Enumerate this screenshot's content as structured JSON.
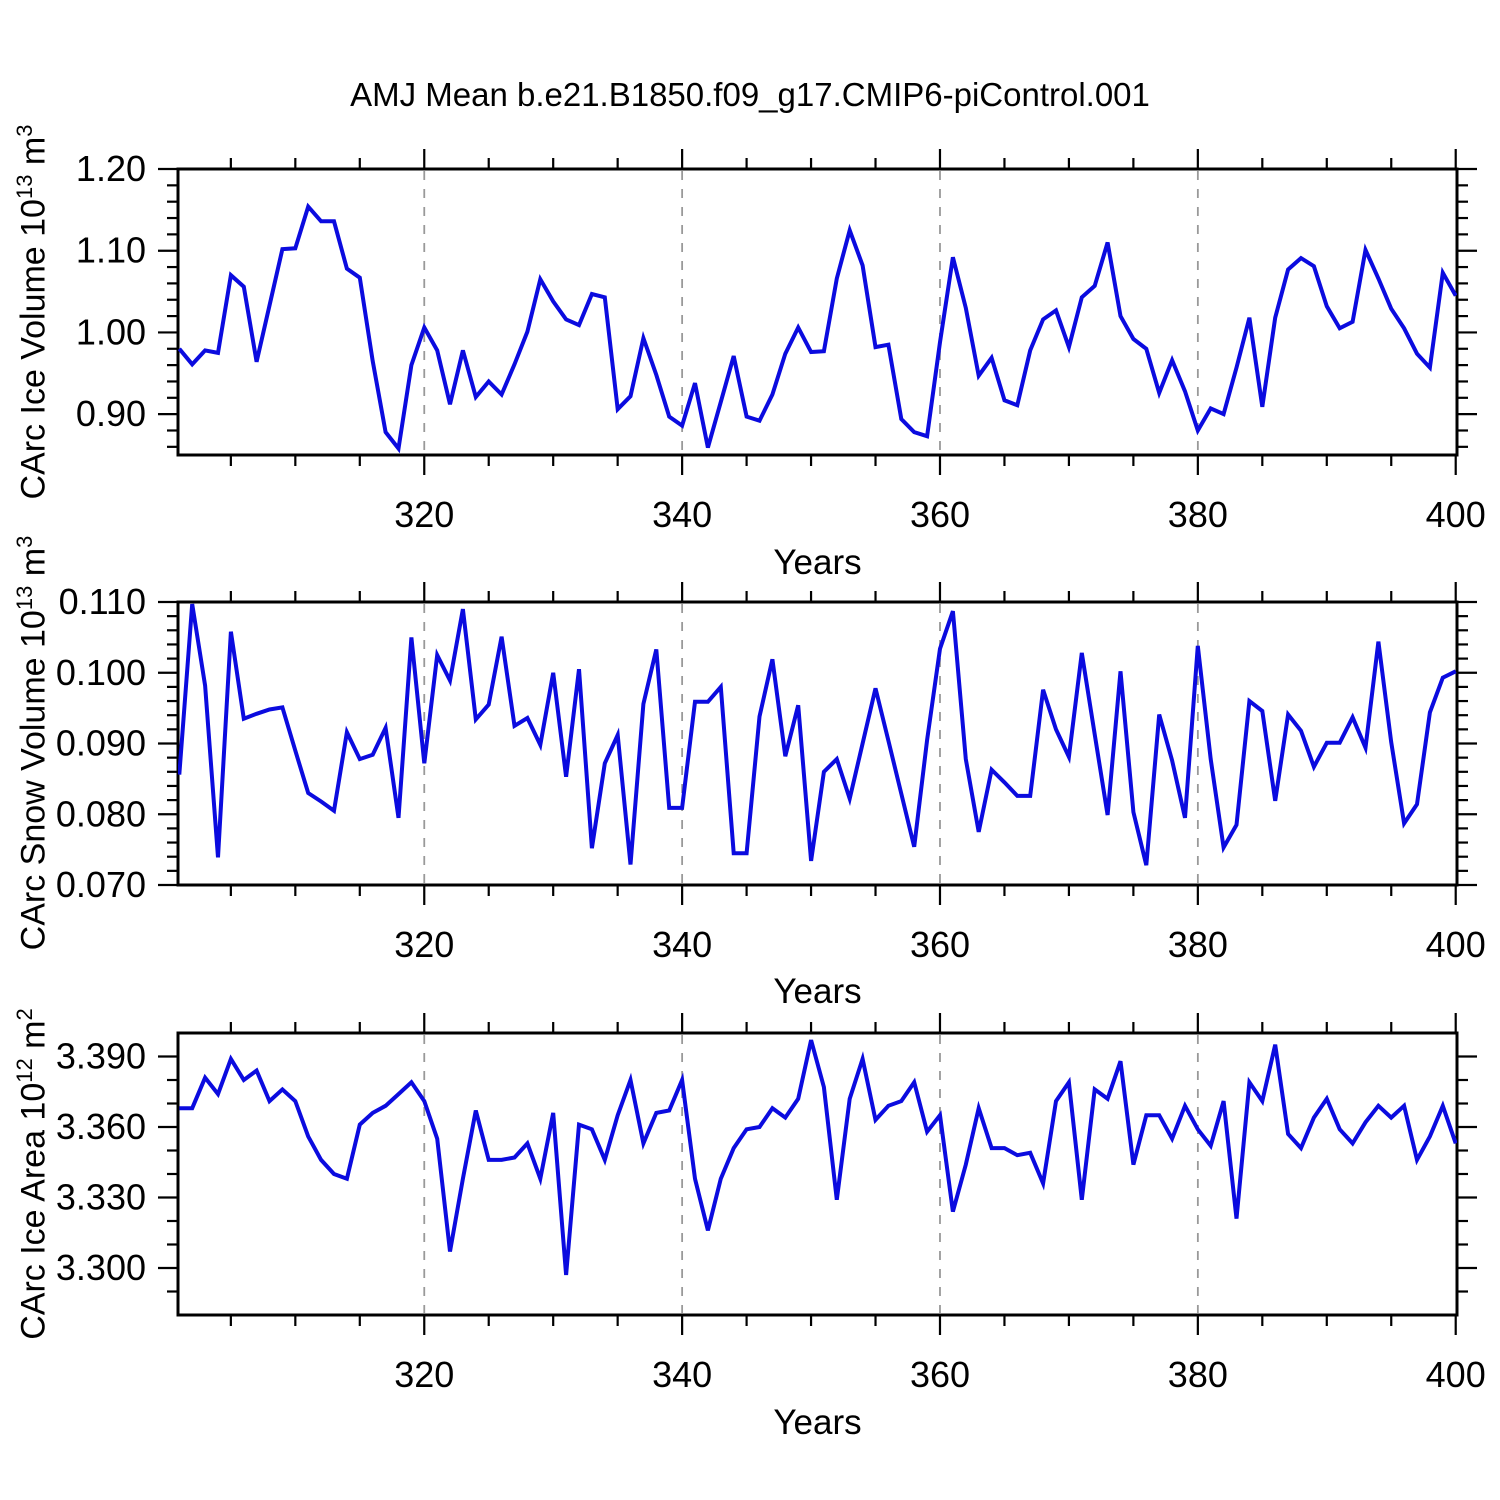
{
  "figure": {
    "title": "AMJ Mean b.e21.B1850.f09_g17.CMIP6-piControl.001",
    "background": "#ffffff",
    "line_color": "#0b0bdf",
    "grid_color": "#999999",
    "axis_color": "#000000"
  },
  "chart_data": [
    {
      "type": "line",
      "ylabel": "CArc Ice Volume 10^13 m^3",
      "ylabel_parts": [
        {
          "text": "CArc Ice Volume 10"
        },
        {
          "text": "13",
          "sup": true
        },
        {
          "text": " m"
        },
        {
          "text": "3",
          "sup": true
        }
      ],
      "xlabel": "Years",
      "xlim": [
        300.9,
        400.1
      ],
      "ylim": [
        0.85,
        1.2
      ],
      "xticks": [
        320,
        340,
        360,
        380,
        400
      ],
      "xtick_labels": [
        "320",
        "340",
        "360",
        "380",
        "400"
      ],
      "xticks_minor": [
        305,
        310,
        315,
        325,
        330,
        335,
        345,
        350,
        355,
        365,
        370,
        375,
        385,
        390,
        395
      ],
      "yticks": [
        0.9,
        1.0,
        1.1,
        1.2
      ],
      "ytick_labels": [
        "0.90",
        "1.00",
        "1.10",
        "1.20"
      ],
      "yticks_minor": [
        0.86,
        0.88,
        0.92,
        0.94,
        0.96,
        0.98,
        1.02,
        1.04,
        1.06,
        1.08,
        1.12,
        1.14,
        1.16,
        1.18
      ],
      "grid_x": [
        320,
        340,
        360,
        380
      ],
      "grid_on": "x-dashed",
      "x": [
        301,
        302,
        303,
        304,
        305,
        306,
        307,
        308,
        309,
        310,
        311,
        312,
        313,
        314,
        315,
        316,
        317,
        318,
        319,
        320,
        321,
        322,
        323,
        324,
        325,
        326,
        327,
        328,
        329,
        330,
        331,
        332,
        333,
        334,
        335,
        336,
        337,
        338,
        339,
        340,
        341,
        342,
        343,
        344,
        345,
        346,
        347,
        348,
        349,
        350,
        351,
        352,
        353,
        354,
        355,
        356,
        357,
        358,
        359,
        360,
        361,
        362,
        363,
        364,
        365,
        366,
        367,
        368,
        369,
        370,
        371,
        372,
        373,
        374,
        375,
        376,
        377,
        378,
        379,
        380,
        381,
        382,
        383,
        384,
        385,
        386,
        387,
        388,
        389,
        390,
        391,
        392,
        393,
        394,
        395,
        396,
        397,
        398,
        399,
        400
      ],
      "values": [
        0.98,
        0.961,
        0.978,
        0.975,
        1.07,
        1.056,
        0.964,
        1.033,
        1.102,
        1.103,
        1.154,
        1.136,
        1.136,
        1.078,
        1.067,
        0.965,
        0.878,
        0.858,
        0.96,
        1.006,
        0.978,
        0.912,
        0.978,
        0.921,
        0.94,
        0.924,
        0.961,
        1.001,
        1.065,
        1.038,
        1.016,
        1.009,
        1.047,
        1.043,
        0.906,
        0.922,
        0.993,
        0.948,
        0.897,
        0.886,
        0.938,
        0.859,
        0.915,
        0.971,
        0.897,
        0.892,
        0.924,
        0.974,
        1.006,
        0.976,
        0.977,
        1.066,
        1.125,
        1.082,
        0.982,
        0.985,
        0.894,
        0.878,
        0.873,
        0.988,
        1.092,
        1.03,
        0.947,
        0.969,
        0.917,
        0.911,
        0.978,
        1.016,
        1.027,
        0.982,
        1.043,
        1.057,
        1.11,
        1.02,
        0.992,
        0.98,
        0.926,
        0.966,
        0.928,
        0.88,
        0.907,
        0.9,
        0.957,
        1.018,
        0.909,
        1.018,
        1.077,
        1.091,
        1.081,
        1.032,
        1.005,
        1.013,
        1.101,
        1.066,
        1.029,
        1.005,
        0.974,
        0.957,
        1.073,
        1.045
      ]
    },
    {
      "type": "line",
      "ylabel": "CArc Snow Volume 10^13 m^3",
      "ylabel_parts": [
        {
          "text": "CArc Snow Volume 10"
        },
        {
          "text": "13",
          "sup": true
        },
        {
          "text": " m"
        },
        {
          "text": "3",
          "sup": true
        }
      ],
      "xlabel": "Years",
      "xlim": [
        300.9,
        400.1
      ],
      "ylim": [
        0.07,
        0.11
      ],
      "xticks": [
        320,
        340,
        360,
        380,
        400
      ],
      "xtick_labels": [
        "320",
        "340",
        "360",
        "380",
        "400"
      ],
      "xticks_minor": [
        305,
        310,
        315,
        325,
        330,
        335,
        345,
        350,
        355,
        365,
        370,
        375,
        385,
        390,
        395
      ],
      "yticks": [
        0.07,
        0.08,
        0.09,
        0.1,
        0.11
      ],
      "ytick_labels": [
        "0.070",
        "0.080",
        "0.090",
        "0.100",
        "0.110"
      ],
      "yticks_minor": [
        0.072,
        0.074,
        0.076,
        0.078,
        0.082,
        0.084,
        0.086,
        0.088,
        0.092,
        0.094,
        0.096,
        0.098,
        0.102,
        0.104,
        0.106,
        0.108
      ],
      "grid_x": [
        320,
        340,
        360,
        380
      ],
      "grid_on": "x-dashed",
      "x": [
        301,
        302,
        303,
        304,
        305,
        306,
        307,
        308,
        309,
        310,
        311,
        312,
        313,
        314,
        315,
        316,
        317,
        318,
        319,
        320,
        321,
        322,
        323,
        324,
        325,
        326,
        327,
        328,
        329,
        330,
        331,
        332,
        333,
        334,
        335,
        336,
        337,
        338,
        339,
        340,
        341,
        342,
        343,
        344,
        345,
        346,
        347,
        348,
        349,
        350,
        351,
        352,
        353,
        354,
        355,
        356,
        357,
        358,
        359,
        360,
        361,
        362,
        363,
        364,
        365,
        366,
        367,
        368,
        369,
        370,
        371,
        372,
        373,
        374,
        375,
        376,
        377,
        378,
        379,
        380,
        381,
        382,
        383,
        384,
        385,
        386,
        387,
        388,
        389,
        390,
        391,
        392,
        393,
        394,
        395,
        396,
        397,
        398,
        399,
        400
      ],
      "values": [
        0.0856,
        0.1097,
        0.0982,
        0.0739,
        0.1058,
        0.0935,
        0.0942,
        0.0948,
        0.0951,
        0.089,
        0.083,
        0.0818,
        0.0805,
        0.0916,
        0.0878,
        0.0884,
        0.0922,
        0.0795,
        0.105,
        0.0872,
        0.1025,
        0.0989,
        0.109,
        0.0934,
        0.0955,
        0.1051,
        0.0925,
        0.0936,
        0.0898,
        0.1,
        0.0853,
        0.1005,
        0.0752,
        0.0872,
        0.0912,
        0.0729,
        0.0956,
        0.1033,
        0.0809,
        0.0809,
        0.0959,
        0.0959,
        0.098,
        0.0745,
        0.0745,
        0.0938,
        0.1019,
        0.0882,
        0.0954,
        0.0734,
        0.086,
        0.0878,
        0.0822,
        0.09,
        0.0978,
        0.0904,
        0.0829,
        0.0754,
        0.0905,
        0.1034,
        0.1087,
        0.0878,
        0.0775,
        0.0863,
        0.0845,
        0.0826,
        0.0826,
        0.0976,
        0.092,
        0.0881,
        0.1028,
        0.0913,
        0.0799,
        0.1002,
        0.0803,
        0.0728,
        0.0941,
        0.0876,
        0.0795,
        0.1038,
        0.0878,
        0.0753,
        0.0785,
        0.096,
        0.0946,
        0.0819,
        0.0941,
        0.0918,
        0.0867,
        0.0901,
        0.0901,
        0.0937,
        0.0894,
        0.1044,
        0.0902,
        0.0787,
        0.0814,
        0.0944,
        0.0993,
        0.1002
      ]
    },
    {
      "type": "line",
      "ylabel": "CArc Ice Area 10^12 m^2",
      "ylabel_parts": [
        {
          "text": "CArc Ice Area 10"
        },
        {
          "text": "12",
          "sup": true
        },
        {
          "text": " m"
        },
        {
          "text": "2",
          "sup": true
        }
      ],
      "xlabel": "Years",
      "xlim": [
        300.9,
        400.1
      ],
      "ylim": [
        3.28,
        3.4
      ],
      "xticks": [
        320,
        340,
        360,
        380,
        400
      ],
      "xtick_labels": [
        "320",
        "340",
        "360",
        "380",
        "400"
      ],
      "xticks_minor": [
        305,
        310,
        315,
        325,
        330,
        335,
        345,
        350,
        355,
        365,
        370,
        375,
        385,
        390,
        395
      ],
      "yticks": [
        3.3,
        3.33,
        3.36,
        3.39
      ],
      "ytick_labels": [
        "3.300",
        "3.330",
        "3.360",
        "3.390"
      ],
      "yticks_minor": [
        3.29,
        3.31,
        3.32,
        3.34,
        3.35,
        3.37,
        3.38
      ],
      "grid_x": [
        320,
        340,
        360,
        380
      ],
      "grid_on": "x-dashed",
      "x": [
        301,
        302,
        303,
        304,
        305,
        306,
        307,
        308,
        309,
        310,
        311,
        312,
        313,
        314,
        315,
        316,
        317,
        318,
        319,
        320,
        321,
        322,
        323,
        324,
        325,
        326,
        327,
        328,
        329,
        330,
        331,
        332,
        333,
        334,
        335,
        336,
        337,
        338,
        339,
        340,
        341,
        342,
        343,
        344,
        345,
        346,
        347,
        348,
        349,
        350,
        351,
        352,
        353,
        354,
        355,
        356,
        357,
        358,
        359,
        360,
        361,
        362,
        363,
        364,
        365,
        366,
        367,
        368,
        369,
        370,
        371,
        372,
        373,
        374,
        375,
        376,
        377,
        378,
        379,
        380,
        381,
        382,
        383,
        384,
        385,
        386,
        387,
        388,
        389,
        390,
        391,
        392,
        393,
        394,
        395,
        396,
        397,
        398,
        399,
        400
      ],
      "values": [
        3.368,
        3.368,
        3.381,
        3.374,
        3.389,
        3.38,
        3.384,
        3.371,
        3.376,
        3.371,
        3.356,
        3.346,
        3.34,
        3.338,
        3.361,
        3.366,
        3.369,
        3.374,
        3.379,
        3.371,
        3.355,
        3.307,
        3.338,
        3.367,
        3.346,
        3.346,
        3.347,
        3.353,
        3.338,
        3.366,
        3.297,
        3.361,
        3.359,
        3.346,
        3.365,
        3.38,
        3.353,
        3.366,
        3.367,
        3.38,
        3.338,
        3.316,
        3.338,
        3.351,
        3.359,
        3.36,
        3.368,
        3.364,
        3.372,
        3.397,
        3.377,
        3.329,
        3.372,
        3.389,
        3.363,
        3.369,
        3.371,
        3.379,
        3.358,
        3.365,
        3.324,
        3.344,
        3.368,
        3.351,
        3.351,
        3.348,
        3.349,
        3.336,
        3.371,
        3.379,
        3.329,
        3.376,
        3.372,
        3.388,
        3.344,
        3.365,
        3.365,
        3.355,
        3.369,
        3.359,
        3.352,
        3.371,
        3.321,
        3.379,
        3.371,
        3.395,
        3.357,
        3.351,
        3.364,
        3.372,
        3.359,
        3.353,
        3.362,
        3.369,
        3.364,
        3.369,
        3.346,
        3.356,
        3.369,
        3.353
      ]
    }
  ]
}
